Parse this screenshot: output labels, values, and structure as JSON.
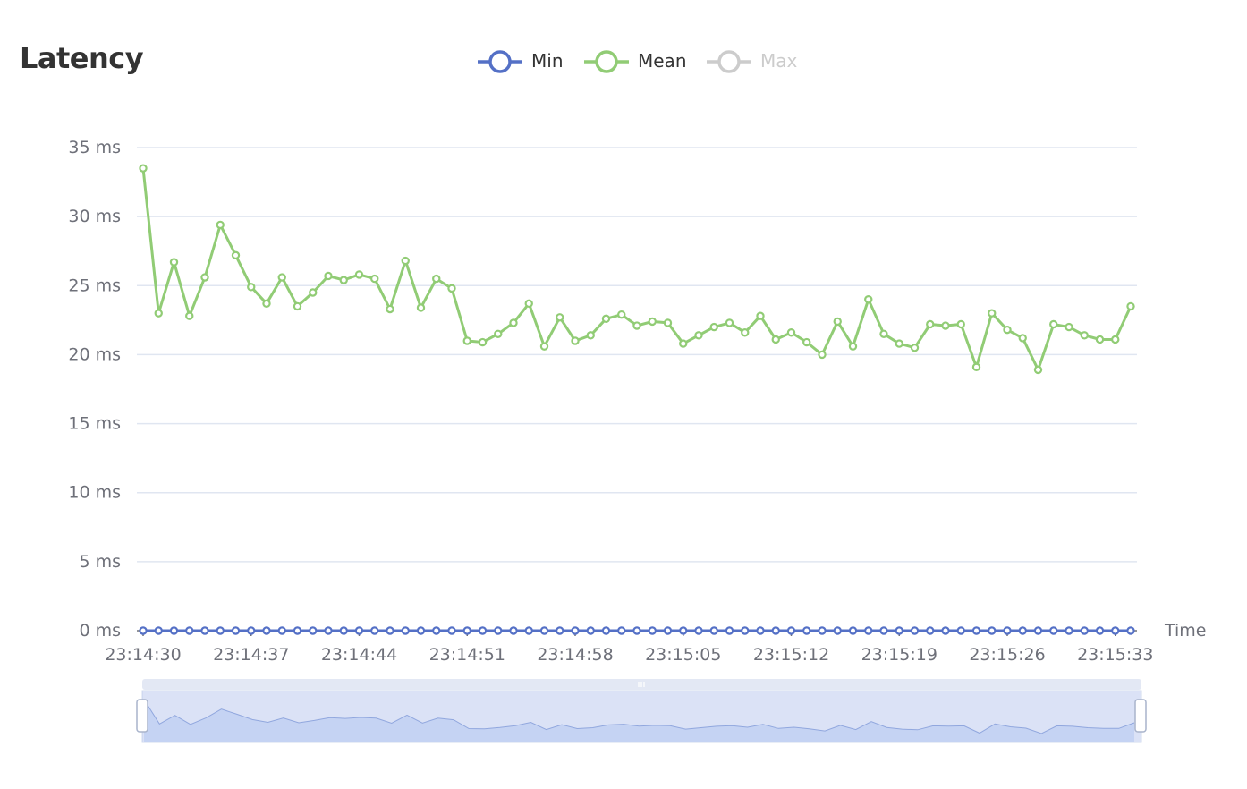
{
  "title": "Latency",
  "legend": [
    {
      "name": "Min",
      "color": "#5470c6",
      "active": true
    },
    {
      "name": "Mean",
      "color": "#91cc75",
      "active": true
    },
    {
      "name": "Max",
      "color": "#cccccc",
      "active": false
    }
  ],
  "chart_data": {
    "type": "line",
    "title": "Latency",
    "xlabel": "Time",
    "ylabel": "",
    "y_unit": "ms",
    "ylim": [
      0,
      35
    ],
    "y_ticks": [
      "0 ms",
      "5 ms",
      "10 ms",
      "15 ms",
      "20 ms",
      "25 ms",
      "30 ms",
      "35 ms"
    ],
    "x_start": "23:14:30",
    "x_end": "23:15:34",
    "x_tick_labels": [
      "23:14:30",
      "23:14:37",
      "23:14:44",
      "23:14:51",
      "23:14:58",
      "23:15:05",
      "23:15:12",
      "23:15:19",
      "23:15:26",
      "23:15:33"
    ],
    "grid": true,
    "legend_position": "top-center",
    "series": [
      {
        "name": "Min",
        "color": "#5470c6",
        "values": [
          0,
          0,
          0,
          0,
          0,
          0,
          0,
          0,
          0,
          0,
          0,
          0,
          0,
          0,
          0,
          0,
          0,
          0,
          0,
          0,
          0,
          0,
          0,
          0,
          0,
          0,
          0,
          0,
          0,
          0,
          0,
          0,
          0,
          0,
          0,
          0,
          0,
          0,
          0,
          0,
          0,
          0,
          0,
          0,
          0,
          0,
          0,
          0,
          0,
          0,
          0,
          0,
          0,
          0,
          0,
          0,
          0,
          0,
          0,
          0,
          0,
          0,
          0,
          0,
          0
        ]
      },
      {
        "name": "Mean",
        "color": "#91cc75",
        "values": [
          33.5,
          23.0,
          26.7,
          22.8,
          25.6,
          29.4,
          27.2,
          24.9,
          23.7,
          25.6,
          23.5,
          24.5,
          25.7,
          25.4,
          25.8,
          25.5,
          23.3,
          26.8,
          23.4,
          25.5,
          24.8,
          21.0,
          20.9,
          21.5,
          22.3,
          23.7,
          20.6,
          22.7,
          21.0,
          21.4,
          22.6,
          22.9,
          22.1,
          22.4,
          22.3,
          20.8,
          21.4,
          22.0,
          22.3,
          21.6,
          22.8,
          21.1,
          21.6,
          20.9,
          20.0,
          22.4,
          20.6,
          24.0,
          21.5,
          20.8,
          20.5,
          22.2,
          22.1,
          22.2,
          19.1,
          23.0,
          21.8,
          21.2,
          18.9,
          22.2,
          22.0,
          21.4,
          21.1,
          21.1,
          23.5
        ]
      },
      {
        "name": "Max",
        "color": "#cccccc",
        "values": []
      }
    ]
  },
  "data_zoom": {
    "range_start_percent": 0,
    "range_end_percent": 100
  }
}
